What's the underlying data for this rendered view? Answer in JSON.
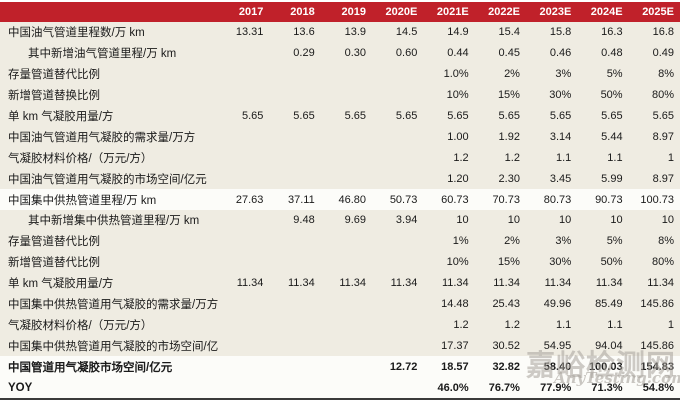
{
  "colors": {
    "header_bg": "#C0212A",
    "header_text": "#FFFFFF",
    "row_beige": "#EFECE2",
    "row_white": "#FCFCF9",
    "body_text": "#1A1A1A",
    "bottom_border": "#3B3B3B",
    "watermark": "#A8A39C"
  },
  "watermark": {
    "line1": "嘉峪检测网",
    "line2": "AnyTesting.com"
  },
  "chart_data": {
    "type": "table",
    "columns": [
      "",
      "2017",
      "2018",
      "2019",
      "2020E",
      "2021E",
      "2022E",
      "2023E",
      "2024E",
      "2025E"
    ],
    "rows": [
      {
        "label": "中国油气管道里程数/万 km",
        "indent": false,
        "bold": false,
        "white_bg": false,
        "values": [
          "13.31",
          "13.6",
          "13.9",
          "14.5",
          "14.9",
          "15.4",
          "15.8",
          "16.3",
          "16.8"
        ]
      },
      {
        "label": "其中新增油气管道里程/万 km",
        "indent": true,
        "bold": false,
        "white_bg": false,
        "values": [
          "",
          "0.29",
          "0.30",
          "0.60",
          "0.44",
          "0.45",
          "0.46",
          "0.48",
          "0.49"
        ]
      },
      {
        "label": "存量管道替代比例",
        "indent": false,
        "bold": false,
        "white_bg": false,
        "values": [
          "",
          "",
          "",
          "",
          "1.0%",
          "2%",
          "3%",
          "5%",
          "8%"
        ]
      },
      {
        "label": "新增管道替换比例",
        "indent": false,
        "bold": false,
        "white_bg": false,
        "values": [
          "",
          "",
          "",
          "",
          "10%",
          "15%",
          "30%",
          "50%",
          "80%"
        ]
      },
      {
        "label": "单 km 气凝胶用量/方",
        "indent": false,
        "bold": false,
        "white_bg": false,
        "values": [
          "5.65",
          "5.65",
          "5.65",
          "5.65",
          "5.65",
          "5.65",
          "5.65",
          "5.65",
          "5.65"
        ]
      },
      {
        "label": "中国油气管道用气凝胶的需求量/万方",
        "indent": false,
        "bold": false,
        "white_bg": false,
        "values": [
          "",
          "",
          "",
          "",
          "1.00",
          "1.92",
          "3.14",
          "5.44",
          "8.97"
        ]
      },
      {
        "label": "气凝胶材料价格/（万元/方）",
        "indent": false,
        "bold": false,
        "white_bg": false,
        "values": [
          "",
          "",
          "",
          "",
          "1.2",
          "1.2",
          "1.1",
          "1.1",
          "1"
        ]
      },
      {
        "label": "中国油气管道用气凝胶的市场空间/亿元",
        "indent": false,
        "bold": false,
        "white_bg": false,
        "values": [
          "",
          "",
          "",
          "",
          "1.20",
          "2.30",
          "3.45",
          "5.99",
          "8.97"
        ]
      },
      {
        "label": "中国集中供热管道里程/万 km",
        "indent": false,
        "bold": false,
        "white_bg": true,
        "values": [
          "27.63",
          "37.11",
          "46.80",
          "50.73",
          "60.73",
          "70.73",
          "80.73",
          "90.73",
          "100.73"
        ]
      },
      {
        "label": "其中新增集中供热管道里程/万 km",
        "indent": true,
        "bold": false,
        "white_bg": false,
        "values": [
          "",
          "9.48",
          "9.69",
          "3.94",
          "10",
          "10",
          "10",
          "10",
          "10"
        ]
      },
      {
        "label": "存量管道替代比例",
        "indent": false,
        "bold": false,
        "white_bg": false,
        "values": [
          "",
          "",
          "",
          "",
          "1%",
          "2%",
          "3%",
          "5%",
          "8%"
        ]
      },
      {
        "label": "新增管道替代比例",
        "indent": false,
        "bold": false,
        "white_bg": false,
        "values": [
          "",
          "",
          "",
          "",
          "10%",
          "15%",
          "30%",
          "50%",
          "80%"
        ]
      },
      {
        "label": "单 km 气凝胶用量/方",
        "indent": false,
        "bold": false,
        "white_bg": false,
        "values": [
          "11.34",
          "11.34",
          "11.34",
          "11.34",
          "11.34",
          "11.34",
          "11.34",
          "11.34",
          "11.34"
        ]
      },
      {
        "label": "中国集中供热管道用气凝胶的需求量/万方",
        "indent": false,
        "bold": false,
        "white_bg": false,
        "values": [
          "",
          "",
          "",
          "",
          "14.48",
          "25.43",
          "49.96",
          "85.49",
          "145.86"
        ]
      },
      {
        "label": "气凝胶材料价格/（万元/方）",
        "indent": false,
        "bold": false,
        "white_bg": false,
        "values": [
          "",
          "",
          "",
          "",
          "1.2",
          "1.2",
          "1.1",
          "1.1",
          "1"
        ]
      },
      {
        "label": "中国集中供热管道用气凝胶的市场空间/亿元",
        "indent": false,
        "bold": false,
        "white_bg": false,
        "values": [
          "",
          "",
          "",
          "",
          "17.37",
          "30.52",
          "54.95",
          "94.04",
          "145.86"
        ]
      },
      {
        "label": "中国管道用气凝胶市场空间/亿元",
        "indent": false,
        "bold": true,
        "white_bg": true,
        "values": [
          "",
          "",
          "",
          "12.72",
          "18.57",
          "32.82",
          "58.40",
          "100.03",
          "154.83"
        ]
      },
      {
        "label": "YOY",
        "indent": false,
        "bold": true,
        "white_bg": true,
        "values": [
          "",
          "",
          "",
          "",
          "46.0%",
          "76.7%",
          "77.9%",
          "71.3%",
          "54.8%"
        ]
      }
    ]
  }
}
